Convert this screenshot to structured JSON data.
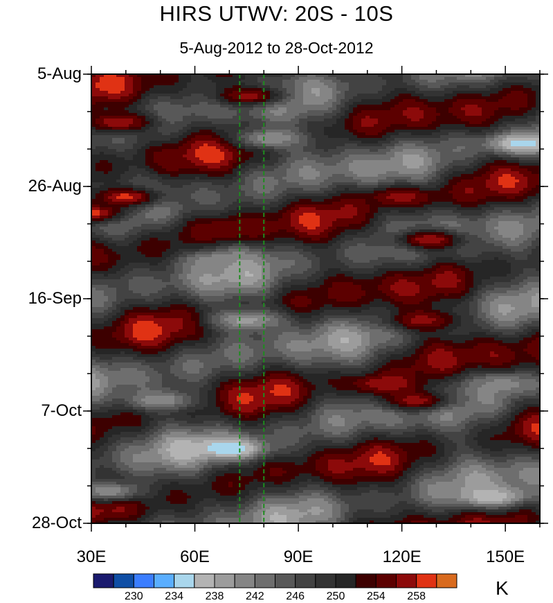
{
  "chart_data": {
    "type": "heatmap",
    "title": "HIRS UTWV: 20S - 10S",
    "subtitle": "5-Aug-2012 to 28-Oct-2012",
    "x_tick_labels": [
      "30E",
      "60E",
      "90E",
      "120E",
      "150E"
    ],
    "x_tick_values": [
      30,
      60,
      90,
      120,
      150
    ],
    "xlim": [
      30,
      160
    ],
    "y_tick_labels": [
      "5-Aug",
      "26-Aug",
      "16-Sep",
      "7-Oct",
      "28-Oct"
    ],
    "y_tick_values": [
      "2012-08-05",
      "2012-08-26",
      "2012-09-16",
      "2012-10-07",
      "2012-10-28"
    ],
    "ylim": [
      "2012-08-05",
      "2012-10-28"
    ],
    "y_direction": "time increases downward",
    "reference_lines_lon": [
      73,
      80
    ],
    "colorbar": {
      "units": "K",
      "levels": [
        228,
        230,
        232,
        234,
        236,
        238,
        240,
        242,
        244,
        246,
        248,
        250,
        252,
        254,
        256,
        258,
        260
      ],
      "labels": [
        "230",
        "234",
        "238",
        "242",
        "246",
        "250",
        "254",
        "258"
      ],
      "colors": [
        "#1a1a6e",
        "#0f4ea5",
        "#3b7dff",
        "#5aaeff",
        "#a9d6ec",
        "#b3b3b3",
        "#9c9c9c",
        "#858585",
        "#6e6e6e",
        "#585858",
        "#434343",
        "#333333",
        "#262626",
        "#3d0000",
        "#5c0000",
        "#8c0a0a",
        "#e03214",
        "#d86a1e"
      ]
    },
    "features": [
      {
        "lon": 30,
        "lat_time": "2012-08-31",
        "value": 259
      },
      {
        "lon": 38,
        "lat_time": "2012-08-14",
        "value": 258
      },
      {
        "lon": 40,
        "lat_time": "2012-08-28",
        "value": 259
      },
      {
        "lon": 76,
        "lat_time": "2012-08-09",
        "value": 257
      },
      {
        "lon": 120,
        "lat_time": "2012-08-28",
        "value": 257
      },
      {
        "lon": 128,
        "lat_time": "2012-09-05",
        "value": 258
      },
      {
        "lon": 126,
        "lat_time": "2012-09-20",
        "value": 257
      },
      {
        "lon": 115,
        "lat_time": "2012-10-02",
        "value": 258
      },
      {
        "lon": 124,
        "lat_time": "2012-10-05",
        "value": 257
      },
      {
        "lon": 70,
        "lat_time": "2012-09-03",
        "value": 256
      },
      {
        "lon": 68,
        "lat_time": "2012-09-09",
        "value": 240
      },
      {
        "lon": 75,
        "lat_time": "2012-09-20",
        "value": 239
      },
      {
        "lon": 82,
        "lat_time": "2012-08-17",
        "value": 240
      },
      {
        "lon": 70,
        "lat_time": "2012-10-14",
        "value": 234
      },
      {
        "lon": 155,
        "lat_time": "2012-08-18",
        "value": 235
      },
      {
        "lon": 146,
        "lat_time": "2012-10-23",
        "value": 236
      },
      {
        "lon": 50,
        "lat_time": "2012-10-05",
        "value": 240
      },
      {
        "lon": 35,
        "lat_time": "2012-10-22",
        "value": 240
      },
      {
        "lon": 150,
        "lat_time": "2012-10-02",
        "value": 241
      }
    ]
  }
}
